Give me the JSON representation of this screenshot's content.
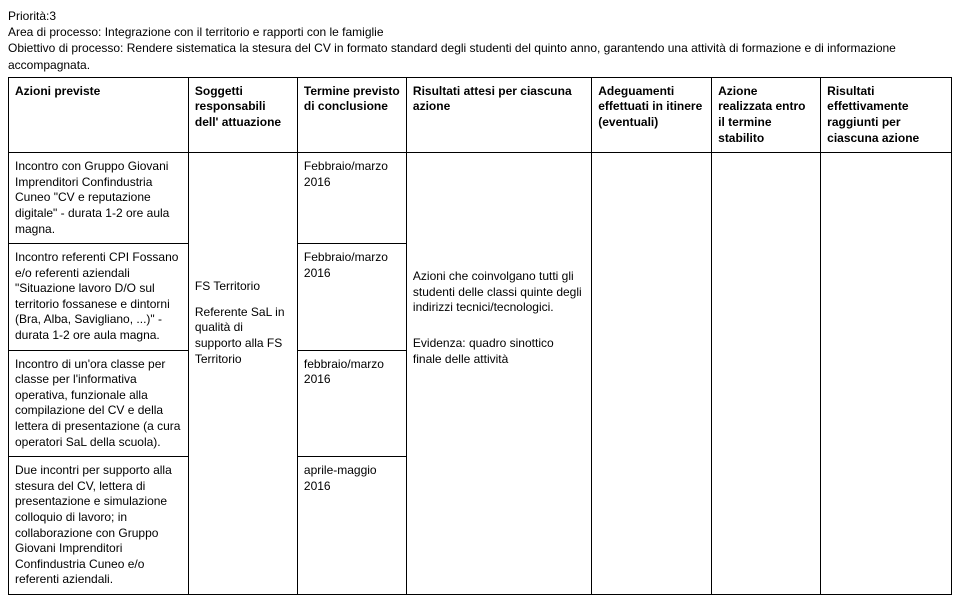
{
  "header": {
    "line1": "Priorità:3",
    "line2": "Area di processo: Integrazione con il territorio e rapporti con le famiglie",
    "line3": "Obiettivo di processo: Rendere sistematica la stesura del CV in formato standard degli studenti del quinto anno, garantendo una attività di formazione e di informazione accompagnata."
  },
  "columns": {
    "c0": "Azioni previste",
    "c1": "Soggetti responsabili dell' attuazione",
    "c2": "Termine previsto di conclusione",
    "c3": "Risultati attesi per ciascuna azione",
    "c4": "Adeguamenti effettuati in itinere (eventuali)",
    "c5": "Azione realizzata entro il termine stabilito",
    "c6": "Risultati effettivamente raggiunti per ciascuna azione"
  },
  "rows": {
    "r1": {
      "azione": "Incontro con Gruppo Giovani Imprenditori Confindustria Cuneo \"CV e reputazione digitale\" - durata 1-2 ore aula magna.",
      "termine": "Febbraio/marzo 2016"
    },
    "r2": {
      "azione": "Incontro referenti CPI Fossano e/o referenti aziendali \"Situazione lavoro D/O sul territorio fossanese e dintorni (Bra, Alba, Savigliano, ...)\" - durata 1-2 ore aula magna.",
      "termine": "Febbraio/marzo 2016"
    },
    "r3": {
      "azione": "Incontro di un'ora classe per classe per l'informativa operativa, funzionale alla compilazione del CV e della lettera di presentazione (a cura operatori SaL della scuola).",
      "termine": "febbraio/marzo 2016"
    },
    "r4": {
      "azione": "Due incontri per supporto alla stesura del CV, lettera di presentazione e simulazione colloquio di lavoro; in collaborazione con Gruppo Giovani Imprenditori Confindustria Cuneo e/o referenti aziendali.",
      "termine": "aprile-maggio 2016"
    }
  },
  "merged": {
    "soggetti_line1": "FS Territorio",
    "soggetti_line2": "Referente SaL in qualità di supporto alla FS Territorio",
    "risultati_line1": "Azioni che coinvolgano tutti gli studenti delle classi quinte degli indirizzi tecnici/tecnologici.",
    "risultati_line2": "Evidenza: quadro sinottico finale delle attività"
  }
}
